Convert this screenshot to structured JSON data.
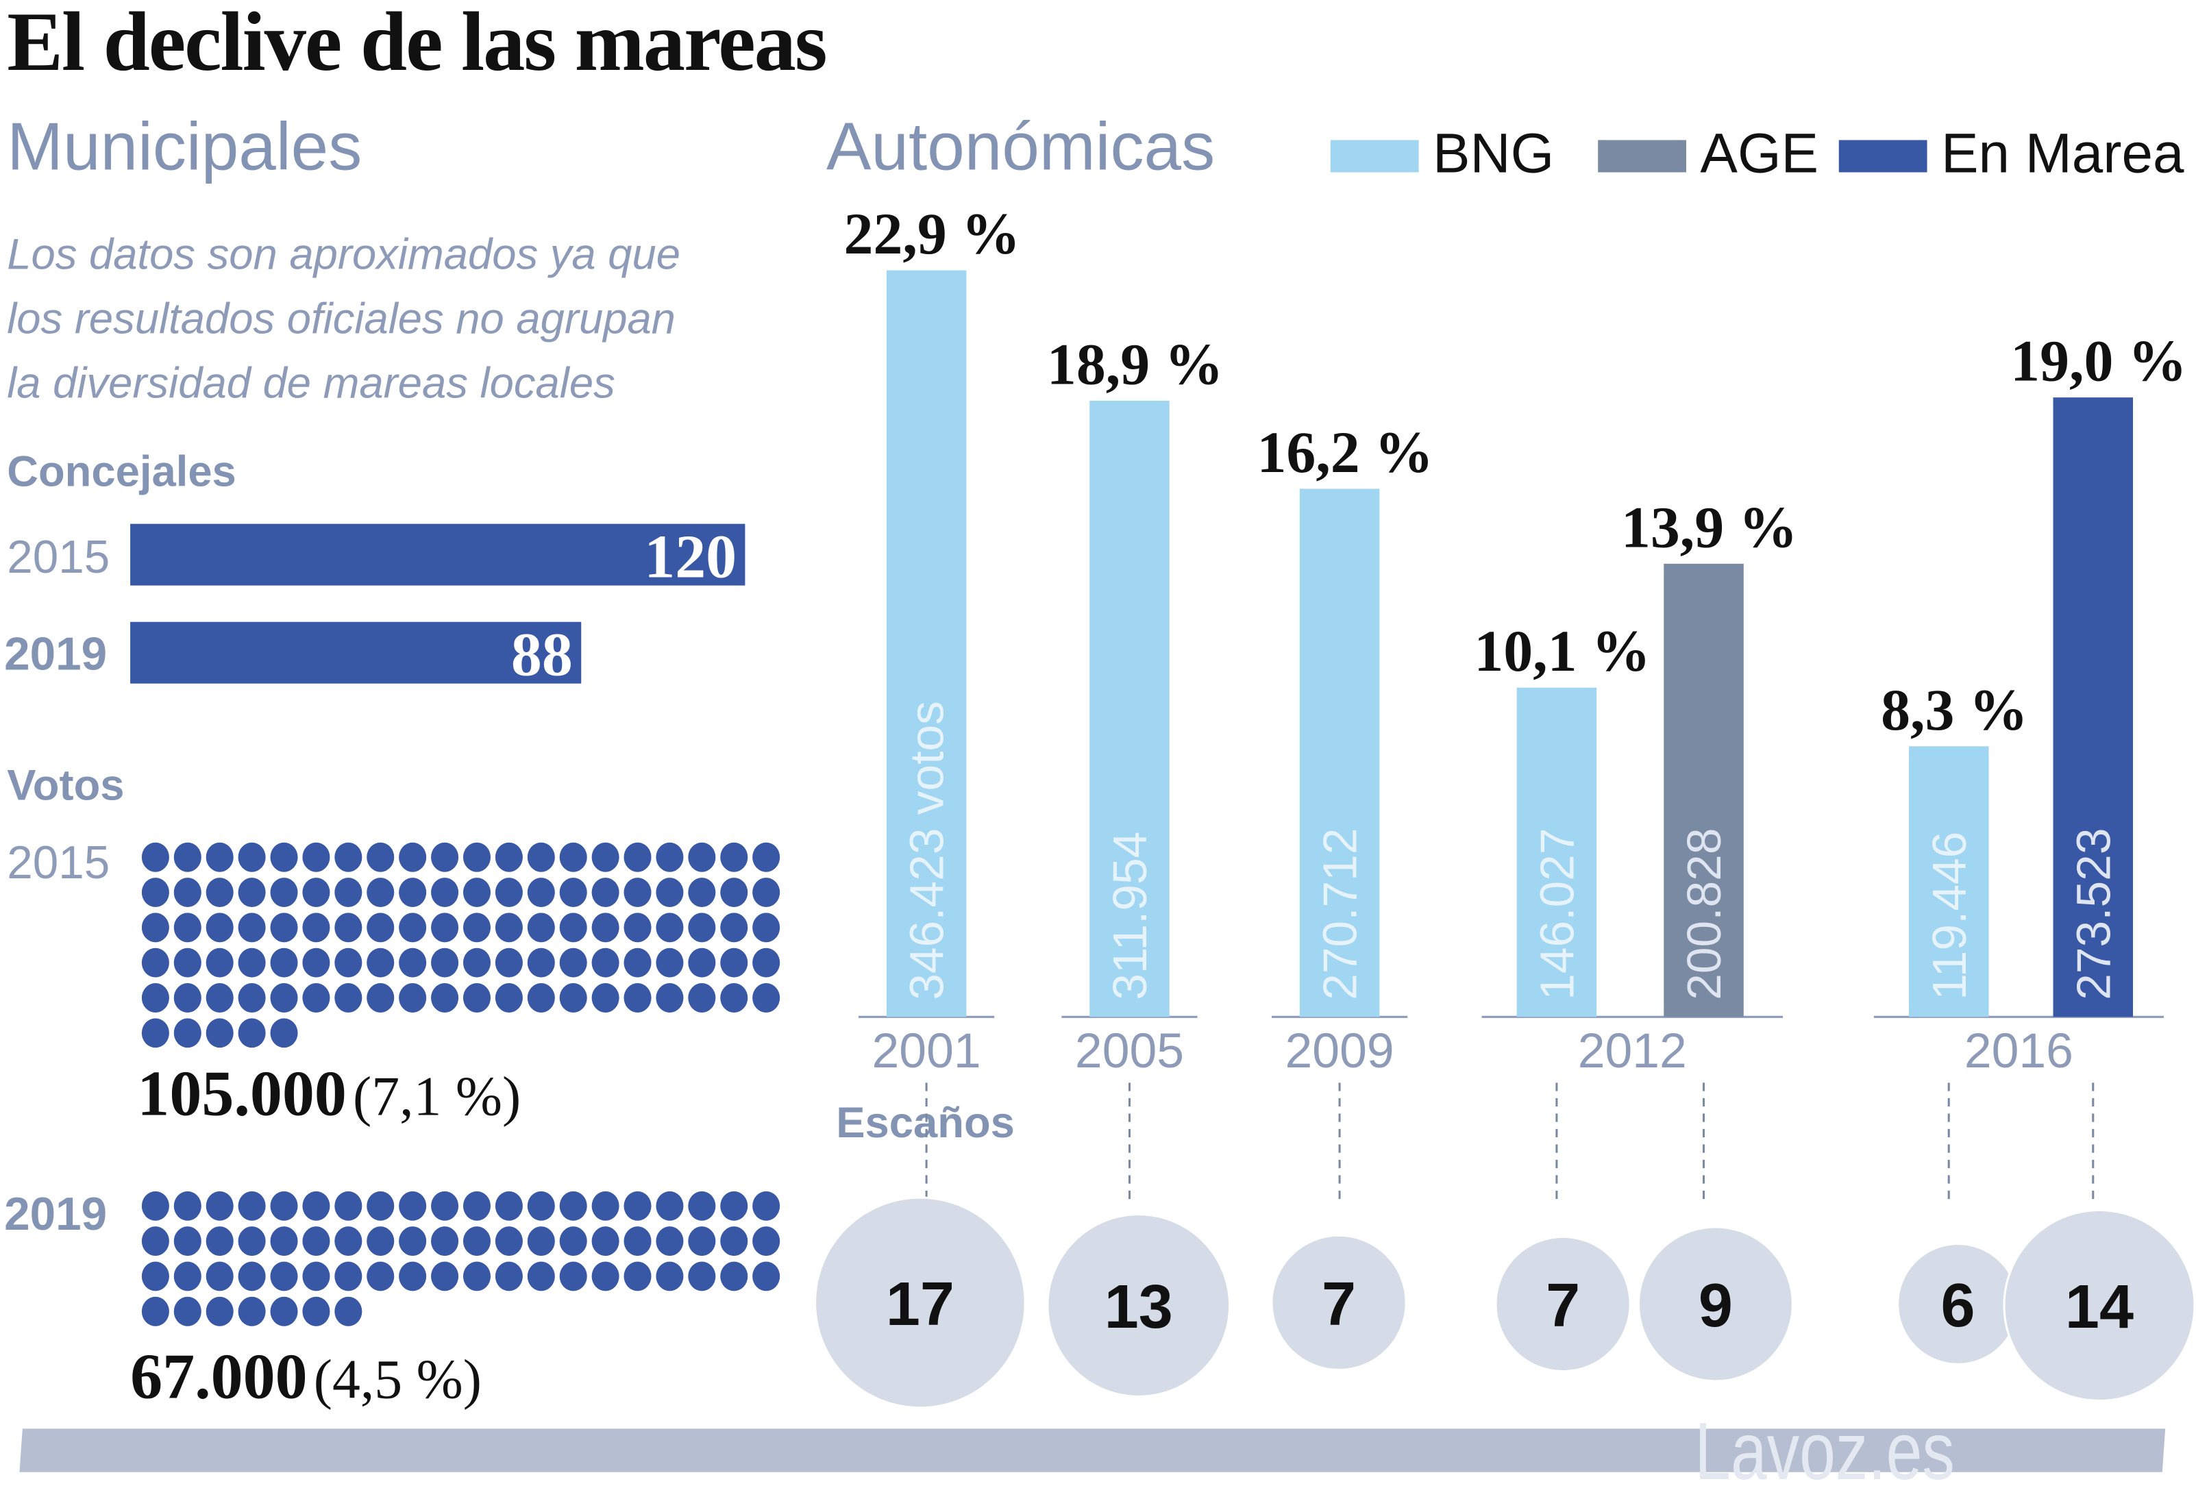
{
  "title": "El declive de las mareas",
  "municipales": {
    "heading": "Municipales",
    "note_lines": [
      "Los datos son aproximados ya que",
      "los resultados oficiales no agrupan",
      "la diversidad de mareas locales"
    ],
    "concejales": {
      "label": "Concejales",
      "rows": [
        {
          "year": "2015",
          "value": 120,
          "label": "120"
        },
        {
          "year": "2019",
          "value": 88,
          "label": "88"
        }
      ]
    },
    "votos": {
      "label": "Votos",
      "rows": [
        {
          "year": "2015",
          "dots": 105,
          "total": "105.000",
          "pct": "(7,1 %)"
        },
        {
          "year": "2019",
          "dots": 67,
          "total": "67.000",
          "pct": "(4,5 %)"
        }
      ]
    }
  },
  "autonomicas": {
    "heading": "Autonómicas",
    "escanos_label": "Escaños"
  },
  "chart_data": {
    "type": "bar",
    "title": "Autonómicas",
    "ylabel": "",
    "ylim": [
      0,
      23
    ],
    "grid": false,
    "legend_position": "top-right",
    "colors": {
      "BNG": "#a0d6f2",
      "AGE": "#7a8aa3",
      "En Marea": "#3858a5"
    },
    "legend": [
      "BNG",
      "AGE",
      "En Marea"
    ],
    "categories": [
      "2001",
      "2005",
      "2009",
      "2012",
      "2016"
    ],
    "bars": [
      {
        "year": "2001",
        "party": "BNG",
        "pct": 22.9,
        "pct_label": "22,9 %",
        "votes": "346.423 votos",
        "seats": 17
      },
      {
        "year": "2005",
        "party": "BNG",
        "pct": 18.9,
        "pct_label": "18,9 %",
        "votes": "311.954",
        "seats": 13
      },
      {
        "year": "2009",
        "party": "BNG",
        "pct": 16.2,
        "pct_label": "16,2 %",
        "votes": "270.712",
        "seats": 7
      },
      {
        "year": "2012",
        "party": "BNG",
        "pct": 10.1,
        "pct_label": "10,1 %",
        "votes": "146.027",
        "seats": 7
      },
      {
        "year": "2012",
        "party": "AGE",
        "pct": 13.9,
        "pct_label": "13,9 %",
        "votes": "200.828",
        "seats": 9
      },
      {
        "year": "2016",
        "party": "BNG",
        "pct": 8.3,
        "pct_label": "8,3 %",
        "votes": "119.446",
        "seats": 6
      },
      {
        "year": "2016",
        "party": "En Marea",
        "pct": 19.0,
        "pct_label": "19,0 %",
        "votes": "273.523",
        "seats": 14
      }
    ]
  },
  "footer": {
    "brand": "Lavoz.es"
  }
}
